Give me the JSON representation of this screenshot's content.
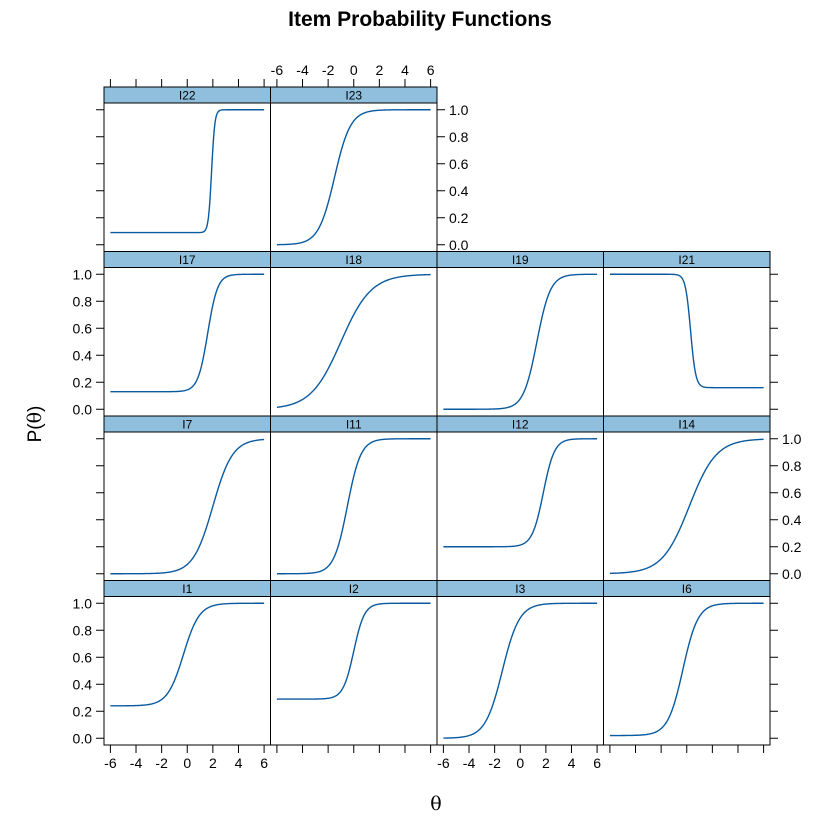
{
  "chart_data": {
    "type": "line",
    "title": "Item Probability Functions",
    "xlabel": "θ",
    "ylabel_prefix": "P(",
    "ylabel_symbol": "θ",
    "ylabel_suffix": ")",
    "xlim": [
      -6.5,
      6.5
    ],
    "ylim": [
      -0.05,
      1.05
    ],
    "x_ticks": [
      -6,
      -4,
      -2,
      0,
      2,
      4,
      6
    ],
    "x_tick_labels": [
      "-6",
      "-4",
      "-2",
      "0",
      "2",
      "4",
      "6"
    ],
    "y_ticks": [
      0,
      0.2,
      0.4,
      0.6,
      0.8,
      1.0
    ],
    "y_tick_labels": [
      "0.0",
      "0.2",
      "0.4",
      "0.6",
      "0.8",
      "1.0"
    ],
    "line_color": "#0a5aa0",
    "strip_color": "#8fbfdc",
    "x_range_plotted": [
      -6,
      6
    ],
    "panels": [
      {
        "name": "I22",
        "a": 8.0,
        "b": 1.9,
        "c": 0.09,
        "d": 1.0
      },
      {
        "name": "I23",
        "a": 1.6,
        "b": -1.5,
        "c": 0.0,
        "d": 1.0
      },
      {
        "name": "I17",
        "a": 2.6,
        "b": 1.6,
        "c": 0.13,
        "d": 1.0
      },
      {
        "name": "I18",
        "a": 0.85,
        "b": -1.0,
        "c": 0.0,
        "d": 1.0
      },
      {
        "name": "I19",
        "a": 1.9,
        "b": 1.3,
        "c": 0.0,
        "d": 1.0
      },
      {
        "name": "I21",
        "a": -5.0,
        "b": 0.3,
        "c": 0.16,
        "d": 1.0
      },
      {
        "name": "I7",
        "a": 1.3,
        "b": 2.0,
        "c": 0.0,
        "d": 1.0
      },
      {
        "name": "I11",
        "a": 1.9,
        "b": -0.5,
        "c": 0.0,
        "d": 1.0
      },
      {
        "name": "I12",
        "a": 2.3,
        "b": 1.8,
        "c": 0.2,
        "d": 1.0
      },
      {
        "name": "I14",
        "a": 0.95,
        "b": 0.2,
        "c": 0.0,
        "d": 1.0
      },
      {
        "name": "I1",
        "a": 1.6,
        "b": -0.3,
        "c": 0.24,
        "d": 1.0
      },
      {
        "name": "I2",
        "a": 2.4,
        "b": 0.0,
        "c": 0.29,
        "d": 1.0
      },
      {
        "name": "I3",
        "a": 1.5,
        "b": -1.4,
        "c": 0.0,
        "d": 1.0
      },
      {
        "name": "I6",
        "a": 1.7,
        "b": -0.3,
        "c": 0.02,
        "d": 1.0
      }
    ]
  }
}
